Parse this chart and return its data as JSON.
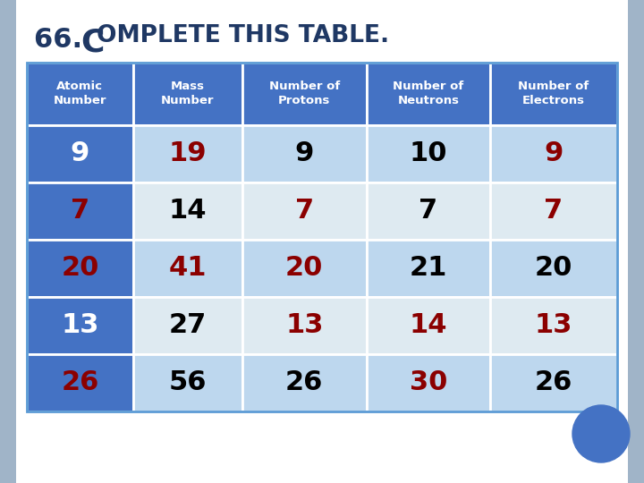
{
  "title_num": "66. ",
  "title_cap": "C",
  "title_rest": "OMPLETE THIS TABLE.",
  "headers": [
    "Atomic\nNumber",
    "Mass\nNumber",
    "Number of\nProtons",
    "Number of\nNeutrons",
    "Number of\nElectrons"
  ],
  "rows": [
    [
      "9",
      "19",
      "9",
      "10",
      "9"
    ],
    [
      "7",
      "14",
      "7",
      "7",
      "7"
    ],
    [
      "20",
      "41",
      "20",
      "21",
      "20"
    ],
    [
      "13",
      "27",
      "13",
      "14",
      "13"
    ],
    [
      "26",
      "56",
      "26",
      "30",
      "26"
    ]
  ],
  "text_colors": [
    [
      "white",
      "darkred",
      "black",
      "black",
      "darkred"
    ],
    [
      "darkred",
      "black",
      "darkred",
      "black",
      "darkred"
    ],
    [
      "darkred",
      "darkred",
      "darkred",
      "black",
      "black"
    ],
    [
      "white",
      "black",
      "darkred",
      "darkred",
      "darkred"
    ],
    [
      "darkred",
      "black",
      "black",
      "darkred",
      "black"
    ]
  ],
  "header_bg": "#4472C4",
  "col0_bg": "#4472C4",
  "row_bgs": [
    "#BDD7EE",
    "#DEEAF1",
    "#BDD7EE",
    "#DEEAF1",
    "#BDD7EE"
  ],
  "header_text_color": "white",
  "page_bg": "#FFFFFF",
  "slide_border_color": "#A0B4C8",
  "title_color": "#1F3864",
  "circle_color": "#4472C4",
  "table_border_color": "#5B9BD5"
}
